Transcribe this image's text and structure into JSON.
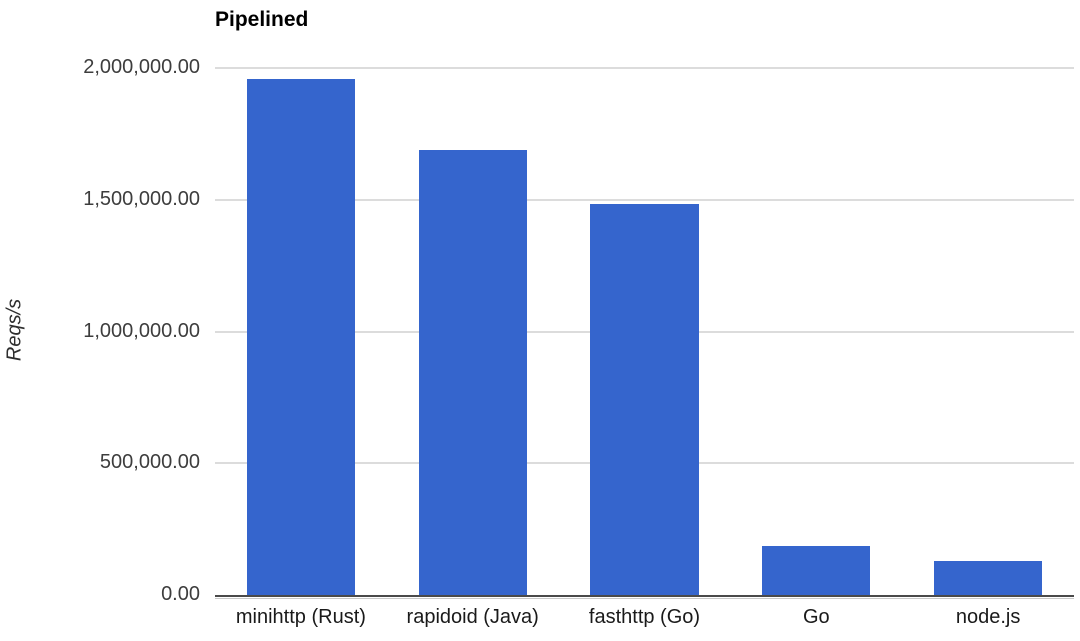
{
  "chart_data": {
    "type": "bar",
    "title": "Pipelined",
    "ylabel": "Reqs/s",
    "xlabel": "",
    "categories": [
      "minihttp (Rust)",
      "rapidoid (Java)",
      "fasthttp (Go)",
      "Go",
      "node.js"
    ],
    "values": [
      1960000,
      1690000,
      1485000,
      185000,
      128000
    ],
    "ylim": [
      0,
      2000000
    ],
    "yticks": [
      {
        "value": 0,
        "label": "0.00"
      },
      {
        "value": 500000,
        "label": "500,000.00"
      },
      {
        "value": 1000000,
        "label": "1,000,000.00"
      },
      {
        "value": 1500000,
        "label": "1,500,000.00"
      },
      {
        "value": 2000000,
        "label": "2,000,000.00"
      }
    ],
    "grid": "horizontal",
    "legend": "none",
    "colors": {
      "bar": "#3565cd",
      "gridline": "#dcdcdc",
      "baseline": "#4a4a4a",
      "tick_text": "#3d3d3d",
      "category_text": "#1a1a1a",
      "title_text": "#000000",
      "background": "#ffffff"
    }
  }
}
